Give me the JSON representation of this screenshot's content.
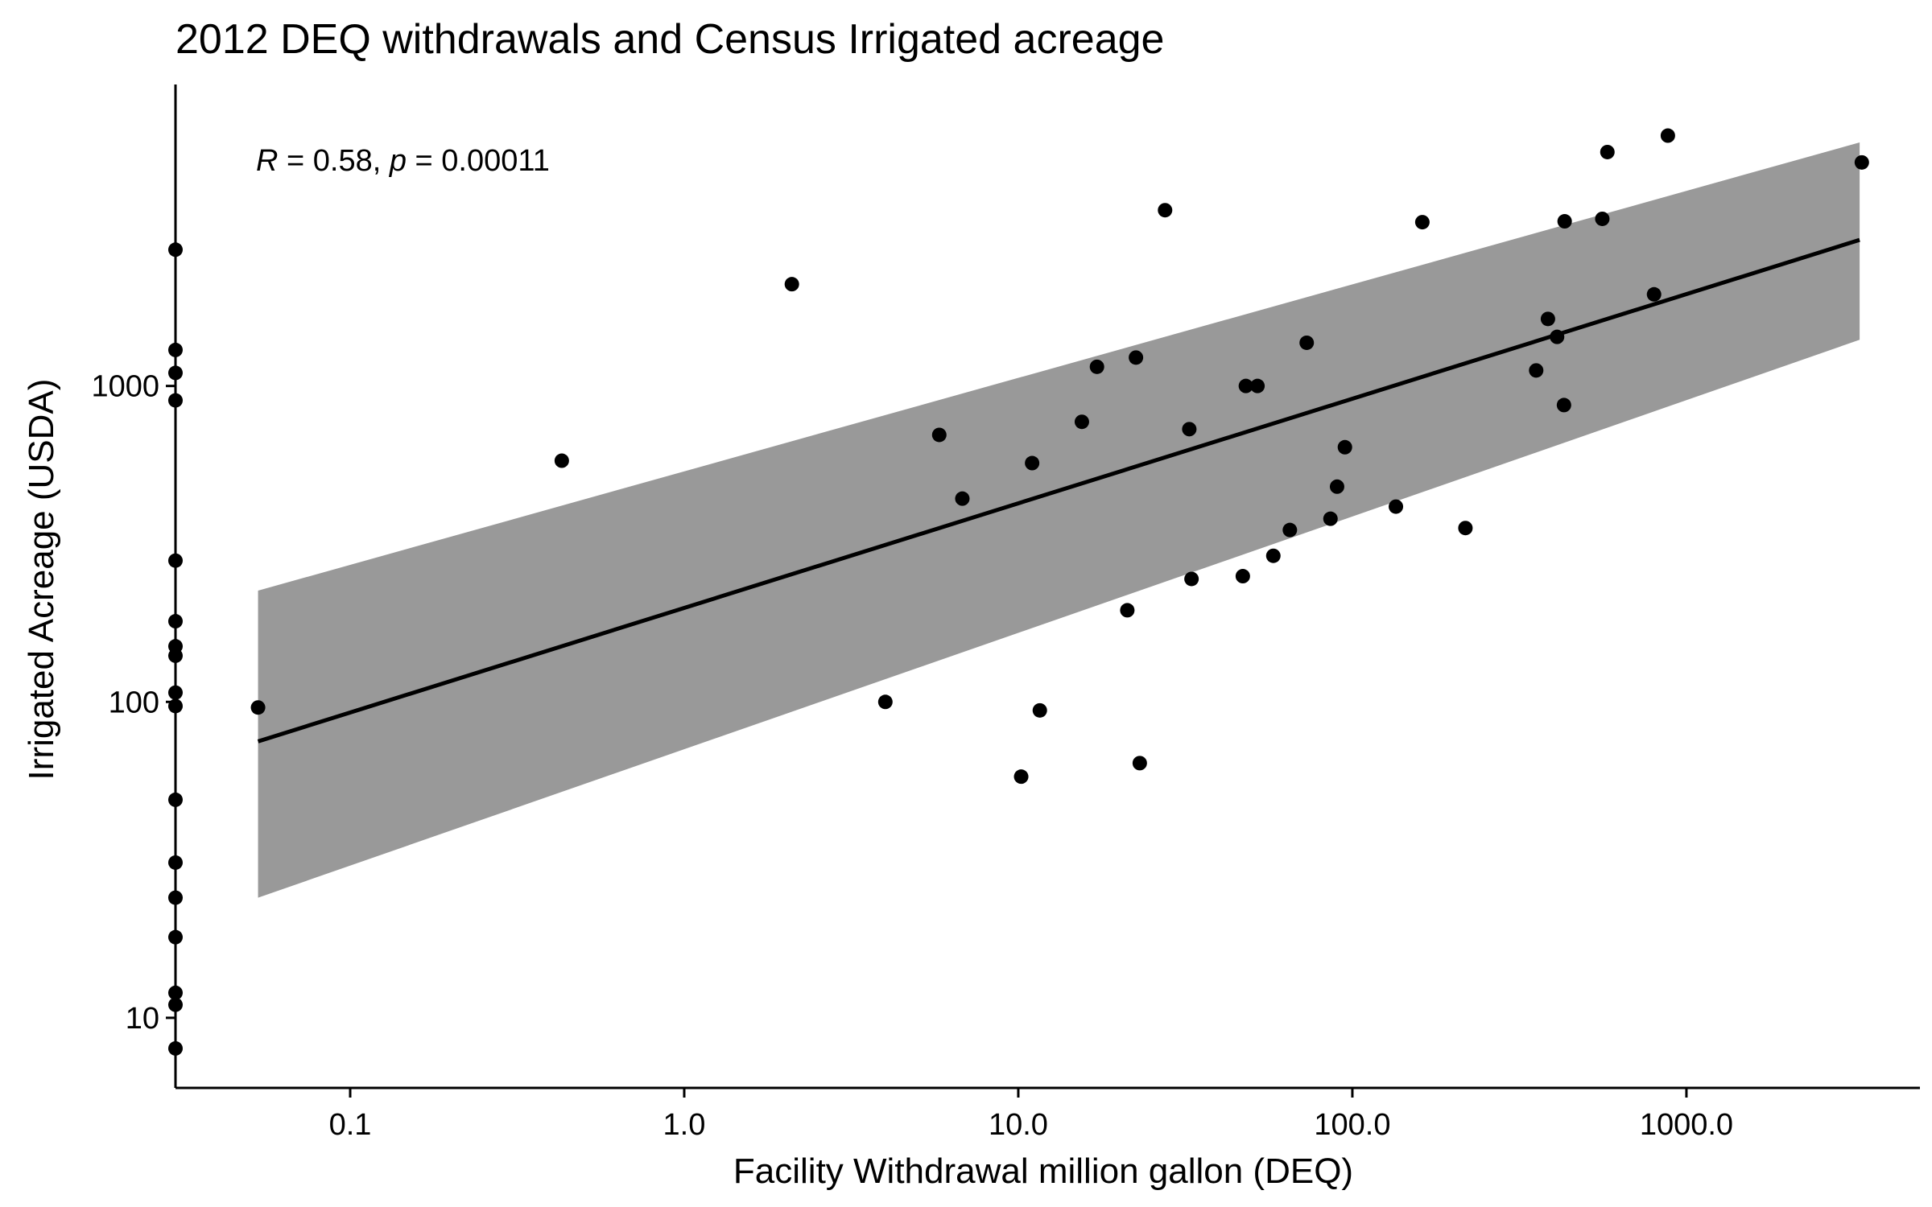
{
  "chart_data": {
    "type": "scatter",
    "title": "2012 DEQ withdrawals and Census Irrigated acreage",
    "xlabel": "Facility Withdrawal million gallon (DEQ)",
    "ylabel": "Irrigated Acreage (USDA)",
    "x_scale": "log10",
    "y_scale": "log10",
    "xlim": [
      0.03,
      5000
    ],
    "ylim": [
      6,
      9000
    ],
    "x_ticks": [
      {
        "value": 0.1,
        "label": "0.1"
      },
      {
        "value": 1,
        "label": "1.0"
      },
      {
        "value": 10,
        "label": "10.0"
      },
      {
        "value": 100,
        "label": "100.0"
      },
      {
        "value": 1000,
        "label": "1000.0"
      }
    ],
    "y_ticks": [
      {
        "value": 10,
        "label": "10"
      },
      {
        "value": 100,
        "label": "100"
      },
      {
        "value": 1000,
        "label": "1000"
      }
    ],
    "annotation": {
      "r_symbol": "R",
      "r_value": " = 0.58, ",
      "p_symbol": "p",
      "p_value": " = 0.00011"
    },
    "grid": false,
    "legend": "none",
    "colors": {
      "points": "#000000",
      "fit_line": "#000000",
      "confidence_band": "#999999"
    },
    "fit": {
      "x_start": 0.053,
      "y_start": 75,
      "x_end": 3300,
      "y_end": 2900,
      "band_start": [
        24,
        225
      ],
      "band_end": [
        1400,
        5900
      ]
    },
    "edge_points_y": [
      2700,
      1300,
      1100,
      900,
      280,
      180,
      150,
      140,
      107,
      97,
      49,
      31,
      24,
      18,
      12,
      11,
      8
    ],
    "points": [
      {
        "x": 0.053,
        "y": 96
      },
      {
        "x": 0.43,
        "y": 580
      },
      {
        "x": 2.1,
        "y": 2100
      },
      {
        "x": 4.0,
        "y": 100
      },
      {
        "x": 5.8,
        "y": 700
      },
      {
        "x": 6.8,
        "y": 440
      },
      {
        "x": 10.2,
        "y": 58
      },
      {
        "x": 11.0,
        "y": 570
      },
      {
        "x": 11.6,
        "y": 94
      },
      {
        "x": 15.5,
        "y": 770
      },
      {
        "x": 17.2,
        "y": 1150
      },
      {
        "x": 21.2,
        "y": 195
      },
      {
        "x": 22.5,
        "y": 1230
      },
      {
        "x": 23.1,
        "y": 64
      },
      {
        "x": 27.5,
        "y": 3600
      },
      {
        "x": 32.5,
        "y": 730
      },
      {
        "x": 33.0,
        "y": 245
      },
      {
        "x": 47.0,
        "y": 250
      },
      {
        "x": 48.0,
        "y": 1000
      },
      {
        "x": 52.0,
        "y": 1000
      },
      {
        "x": 58.0,
        "y": 290
      },
      {
        "x": 65.0,
        "y": 350
      },
      {
        "x": 73.0,
        "y": 1370
      },
      {
        "x": 86.0,
        "y": 380
      },
      {
        "x": 90.0,
        "y": 480
      },
      {
        "x": 95.0,
        "y": 640
      },
      {
        "x": 135.0,
        "y": 415
      },
      {
        "x": 162.0,
        "y": 3300
      },
      {
        "x": 218.0,
        "y": 355
      },
      {
        "x": 355.0,
        "y": 1120
      },
      {
        "x": 385.0,
        "y": 1630
      },
      {
        "x": 410.0,
        "y": 1430
      },
      {
        "x": 430.0,
        "y": 870
      },
      {
        "x": 432.0,
        "y": 3320
      },
      {
        "x": 560.0,
        "y": 3380
      },
      {
        "x": 580.0,
        "y": 5500
      },
      {
        "x": 800.0,
        "y": 1950
      },
      {
        "x": 880.0,
        "y": 6200
      },
      {
        "x": 3350.0,
        "y": 5100
      }
    ]
  }
}
